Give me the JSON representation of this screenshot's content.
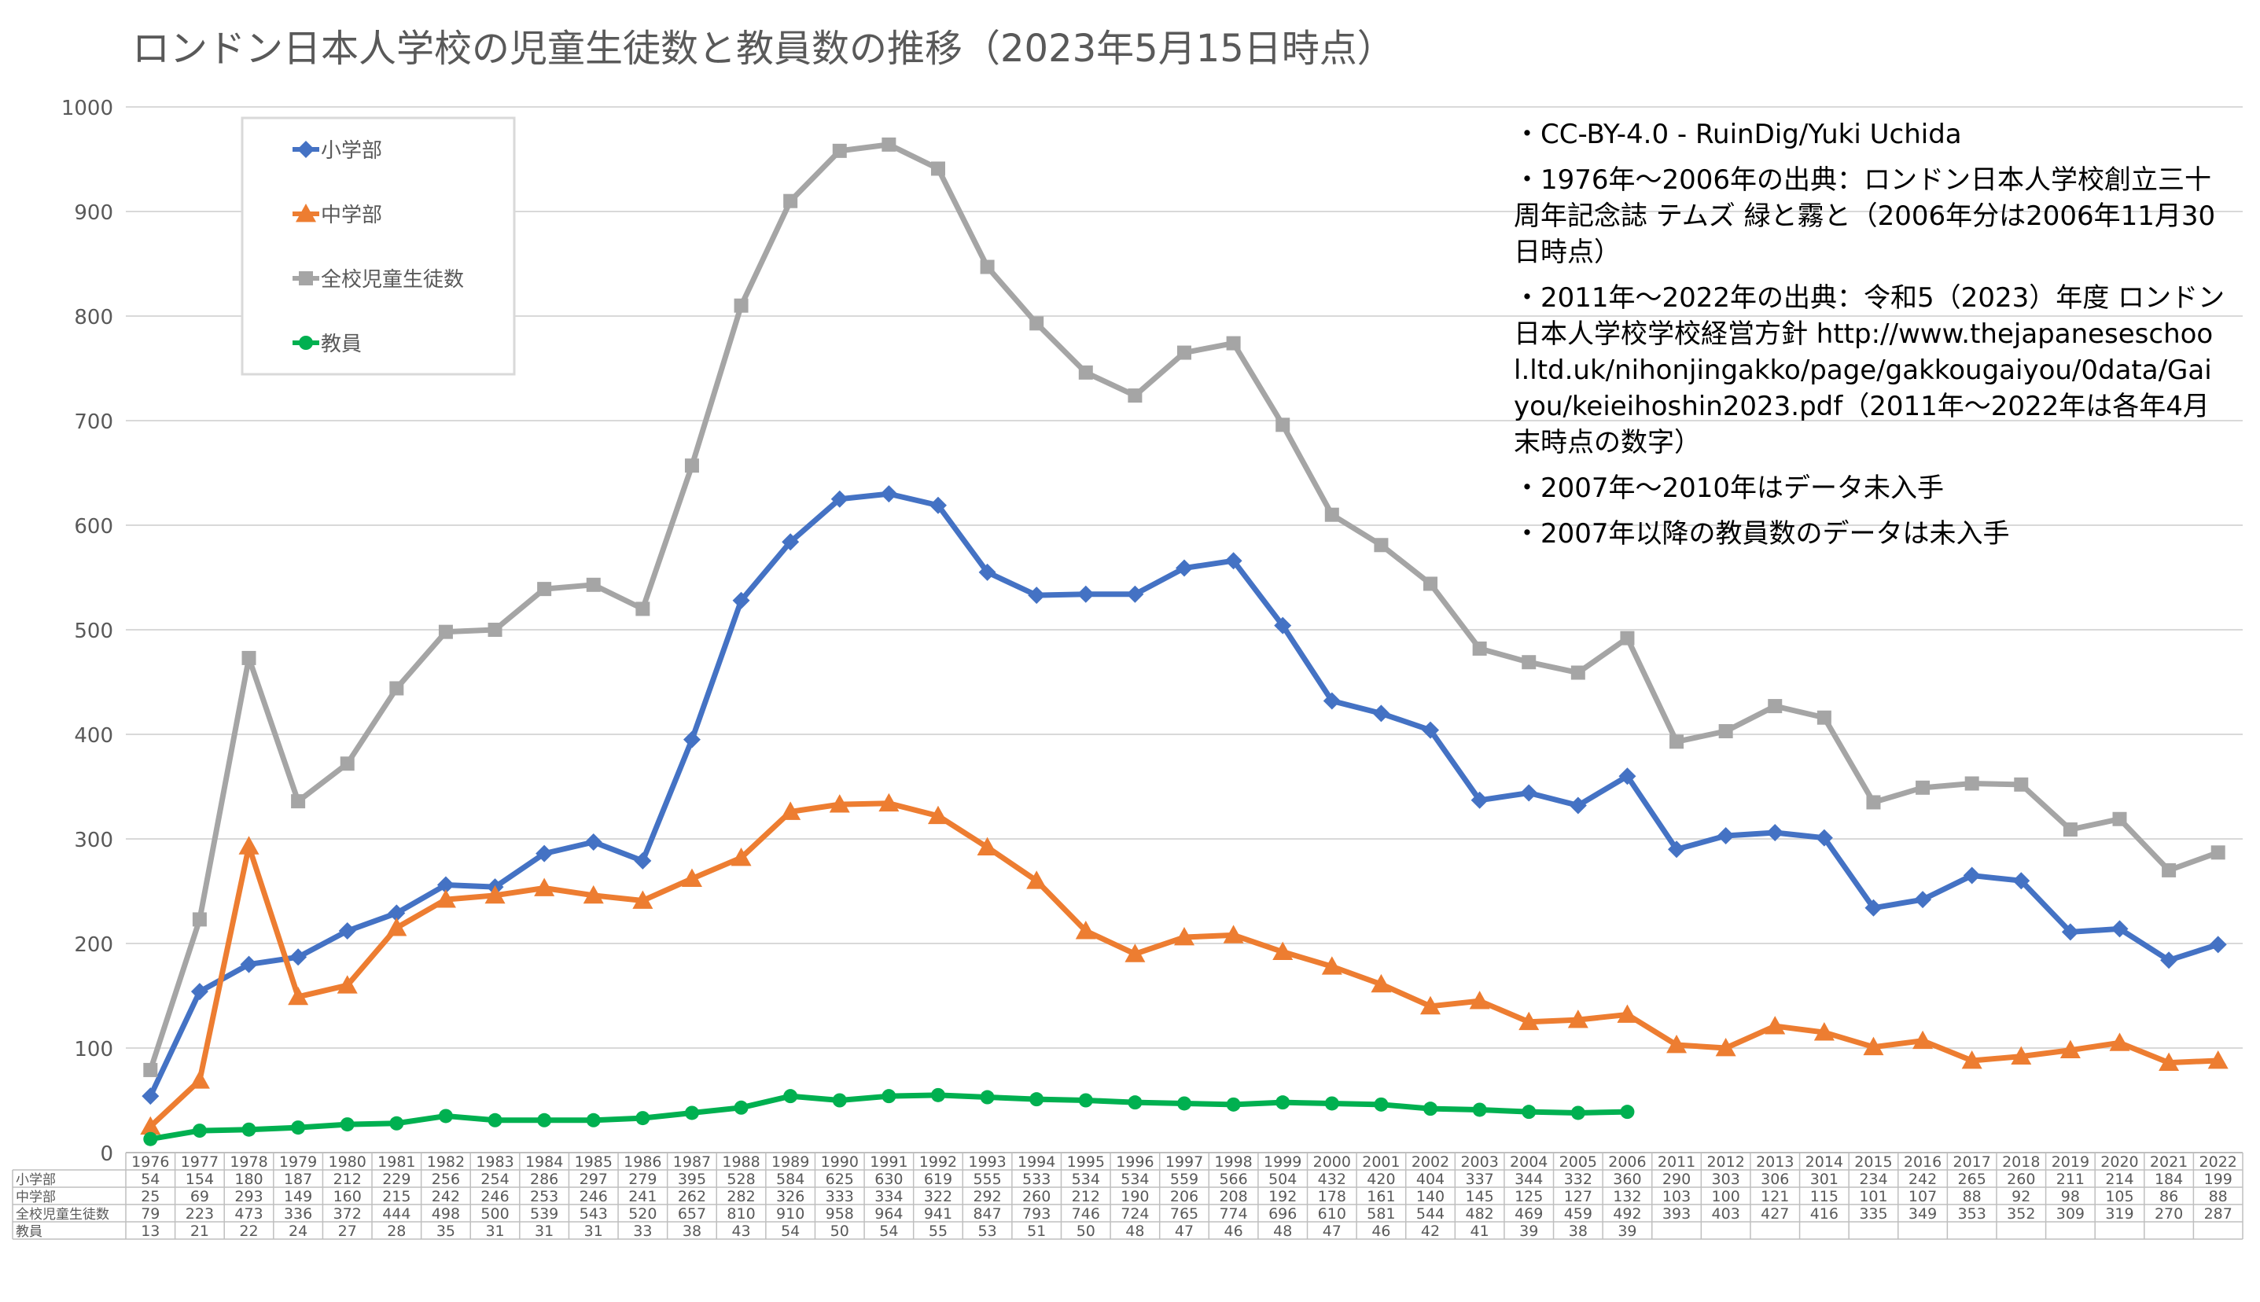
{
  "title": "ロンドン日本人学校の児童生徒数と教員数の推移（2023年5月15日時点）",
  "notes": [
    "・CC-BY-4.0 - RuinDig/Yuki Uchida",
    "・1976年～2006年の出典：ロンドン日本人学校創立三十周年記念誌 テムズ 緑と霧と（2006年分は2006年11月30日時点）",
    "・2011年～2022年の出典：令和5（2023）年度 ロンドン日本人学校学校経営方針 http://www.thejapaneseschool.ltd.uk/nihonjingakko/page/gakkougaiyou/0data/Gaiyou/keieihoshin2023.pdf（2011年～2022年は各年4月末時点の数字）",
    "・2007年～2010年はデータ未入手",
    "・2007年以降の教員数のデータは未入手"
  ],
  "chart_data": {
    "type": "line",
    "title": "ロンドン日本人学校の児童生徒数と教員数の推移（2023年5月15日時点）",
    "categories": [
      "1976",
      "1977",
      "1978",
      "1979",
      "1980",
      "1981",
      "1982",
      "1983",
      "1984",
      "1985",
      "1986",
      "1987",
      "1988",
      "1989",
      "1990",
      "1991",
      "1992",
      "1993",
      "1994",
      "1995",
      "1996",
      "1997",
      "1998",
      "1999",
      "2000",
      "2001",
      "2002",
      "2003",
      "2004",
      "2005",
      "2006",
      "2011",
      "2012",
      "2013",
      "2014",
      "2015",
      "2016",
      "2017",
      "2018",
      "2019",
      "2020",
      "2021",
      "2022"
    ],
    "ylim": [
      0,
      1000
    ],
    "yticks": [
      0,
      100,
      200,
      300,
      400,
      500,
      600,
      700,
      800,
      900,
      1000
    ],
    "grid": true,
    "legend_position": "top-left",
    "data_table": true,
    "series": [
      {
        "name": "小学部",
        "color": "#4472C4",
        "marker": "diamond",
        "values": [
          54,
          154,
          180,
          187,
          212,
          229,
          256,
          254,
          286,
          297,
          279,
          395,
          528,
          584,
          625,
          630,
          619,
          555,
          533,
          534,
          534,
          559,
          566,
          504,
          432,
          420,
          404,
          337,
          344,
          332,
          360,
          290,
          303,
          306,
          301,
          234,
          242,
          265,
          260,
          211,
          214,
          184,
          199
        ]
      },
      {
        "name": "中学部",
        "color": "#ED7D31",
        "marker": "triangle",
        "values": [
          25,
          69,
          293,
          149,
          160,
          215,
          242,
          246,
          253,
          246,
          241,
          262,
          282,
          326,
          333,
          334,
          322,
          292,
          260,
          212,
          190,
          206,
          208,
          192,
          178,
          161,
          140,
          145,
          125,
          127,
          132,
          103,
          100,
          121,
          115,
          101,
          107,
          88,
          92,
          98,
          105,
          86,
          88
        ]
      },
      {
        "name": "全校児童生徒数",
        "color": "#A5A5A5",
        "marker": "square",
        "values": [
          79,
          223,
          473,
          336,
          372,
          444,
          498,
          500,
          539,
          543,
          520,
          657,
          810,
          910,
          958,
          964,
          941,
          847,
          793,
          746,
          724,
          765,
          774,
          696,
          610,
          581,
          544,
          482,
          469,
          459,
          492,
          393,
          403,
          427,
          416,
          335,
          349,
          353,
          352,
          309,
          319,
          270,
          287
        ]
      },
      {
        "name": "教員",
        "color": "#00B050",
        "marker": "circle",
        "values": [
          13,
          21,
          22,
          24,
          27,
          28,
          35,
          31,
          31,
          31,
          33,
          38,
          43,
          54,
          50,
          54,
          55,
          53,
          51,
          50,
          48,
          47,
          46,
          48,
          47,
          46,
          42,
          41,
          39,
          38,
          39,
          null,
          null,
          null,
          null,
          null,
          null,
          null,
          null,
          null,
          null,
          null,
          null
        ]
      }
    ]
  }
}
